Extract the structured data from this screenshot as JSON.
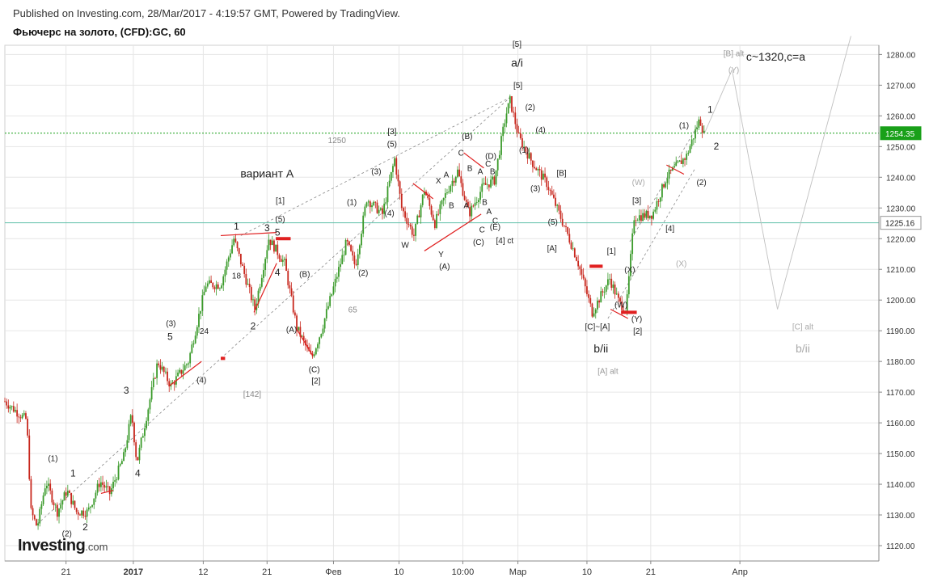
{
  "header": {
    "published": "Published on Investing.com, 28/Mar/2017 - 4:19:57 GMT, Powered by TradingView.",
    "symbol": "Фьючерс на золото, (CFD):GC, 60"
  },
  "logo": {
    "brand": "Investing",
    "suffix": ".com"
  },
  "colors": {
    "up": "#3a9a2a",
    "down": "#c8281e",
    "annotation_red": "#e02020",
    "price_line": "#19a019",
    "level_line": "#5fbfa9",
    "grid": "#e6e6e6",
    "channel": "#888888",
    "projection": "#c0c0c0"
  },
  "chart_data": {
    "type": "candlestick",
    "title": "",
    "ylim": [
      1115,
      1283
    ],
    "y_ticks": [
      "1120.00",
      "1130.00",
      "1140.00",
      "1150.00",
      "1160.00",
      "1170.00",
      "1180.00",
      "1190.00",
      "1200.00",
      "1210.00",
      "1220.00",
      "1230.00",
      "1240.00",
      "1250.00",
      "1260.00",
      "1270.00",
      "1280.00"
    ],
    "x_ticks": [
      {
        "label": "21",
        "pos": 0.07
      },
      {
        "label": "2017",
        "pos": 0.147
      },
      {
        "label": "12",
        "pos": 0.227
      },
      {
        "label": "21",
        "pos": 0.3
      },
      {
        "label": "Фев",
        "pos": 0.376
      },
      {
        "label": "10",
        "pos": 0.451
      },
      {
        "label": "10:00",
        "pos": 0.524
      },
      {
        "label": "Мар",
        "pos": 0.587
      },
      {
        "label": "10",
        "pos": 0.666
      },
      {
        "label": "21",
        "pos": 0.739
      },
      {
        "label": "Апр",
        "pos": 0.841
      }
    ],
    "price_path": [
      [
        0.0,
        1167
      ],
      [
        0.02,
        1162
      ],
      [
        0.025,
        1161
      ],
      [
        0.03,
        1131
      ],
      [
        0.037,
        1126
      ],
      [
        0.047,
        1141
      ],
      [
        0.06,
        1131
      ],
      [
        0.071,
        1138
      ],
      [
        0.082,
        1131
      ],
      [
        0.095,
        1131
      ],
      [
        0.109,
        1141
      ],
      [
        0.12,
        1137
      ],
      [
        0.136,
        1149
      ],
      [
        0.145,
        1163
      ],
      [
        0.151,
        1147
      ],
      [
        0.175,
        1180
      ],
      [
        0.19,
        1172
      ],
      [
        0.21,
        1180
      ],
      [
        0.23,
        1205
      ],
      [
        0.247,
        1205
      ],
      [
        0.262,
        1220
      ],
      [
        0.286,
        1197
      ],
      [
        0.302,
        1220
      ],
      [
        0.32,
        1212
      ],
      [
        0.334,
        1191
      ],
      [
        0.351,
        1181
      ],
      [
        0.362,
        1190
      ],
      [
        0.391,
        1219
      ],
      [
        0.401,
        1211
      ],
      [
        0.414,
        1233
      ],
      [
        0.432,
        1228
      ],
      [
        0.446,
        1246
      ],
      [
        0.454,
        1230
      ],
      [
        0.468,
        1221
      ],
      [
        0.48,
        1236
      ],
      [
        0.492,
        1225
      ],
      [
        0.505,
        1235
      ],
      [
        0.518,
        1242
      ],
      [
        0.531,
        1228
      ],
      [
        0.547,
        1237
      ],
      [
        0.56,
        1239
      ],
      [
        0.573,
        1260
      ],
      [
        0.578,
        1265
      ],
      [
        0.588,
        1253
      ],
      [
        0.603,
        1245
      ],
      [
        0.62,
        1238
      ],
      [
        0.643,
        1222
      ],
      [
        0.655,
        1213
      ],
      [
        0.672,
        1196
      ],
      [
        0.692,
        1207
      ],
      [
        0.703,
        1199
      ],
      [
        0.711,
        1197
      ],
      [
        0.72,
        1227
      ],
      [
        0.741,
        1228
      ],
      [
        0.757,
        1240
      ],
      [
        0.77,
        1244
      ],
      [
        0.78,
        1247
      ],
      [
        0.795,
        1259
      ],
      [
        0.8,
        1254
      ]
    ],
    "last_price": "1254.35",
    "reference_level": "1225.16",
    "annotations": [
      {
        "text": "1250",
        "x": 0.38,
        "y": 1251.2,
        "color": "#888"
      },
      {
        "text": "вариант А",
        "x": 0.3,
        "y": 1240,
        "color": "#222",
        "size": 14
      },
      {
        "text": "[1]",
        "x": 0.315,
        "y": 1231.5,
        "color": "#222"
      },
      {
        "text": "(5)",
        "x": 0.315,
        "y": 1225.5,
        "color": "#222"
      },
      {
        "text": "1",
        "x": 0.265,
        "y": 1223,
        "color": "#222",
        "size": 12
      },
      {
        "text": "3",
        "x": 0.3,
        "y": 1222.5,
        "color": "#222",
        "size": 12
      },
      {
        "text": "5",
        "x": 0.312,
        "y": 1221,
        "color": "#222",
        "size": 12
      },
      {
        "text": "18",
        "x": 0.265,
        "y": 1207,
        "color": "#222"
      },
      {
        "text": "4",
        "x": 0.312,
        "y": 1208,
        "color": "#222",
        "size": 12
      },
      {
        "text": "(B)",
        "x": 0.343,
        "y": 1207.5,
        "color": "#222"
      },
      {
        "text": "2",
        "x": 0.284,
        "y": 1190.5,
        "color": "#222",
        "size": 12
      },
      {
        "text": "(A)",
        "x": 0.328,
        "y": 1189.5,
        "color": "#222"
      },
      {
        "text": "(C)",
        "x": 0.354,
        "y": 1176.5,
        "color": "#222"
      },
      {
        "text": "[2]",
        "x": 0.356,
        "y": 1172.8,
        "color": "#222"
      },
      {
        "text": "65",
        "x": 0.398,
        "y": 1196,
        "color": "#888"
      },
      {
        "text": "(2)",
        "x": 0.41,
        "y": 1208,
        "color": "#222"
      },
      {
        "text": "(1)",
        "x": 0.397,
        "y": 1231,
        "color": "#222"
      },
      {
        "text": "(3)",
        "x": 0.425,
        "y": 1241,
        "color": "#222"
      },
      {
        "text": "(4)",
        "x": 0.44,
        "y": 1227.5,
        "color": "#222"
      },
      {
        "text": "[3]",
        "x": 0.443,
        "y": 1254,
        "color": "#222"
      },
      {
        "text": "(5)",
        "x": 0.443,
        "y": 1250,
        "color": "#222"
      },
      {
        "text": "W",
        "x": 0.458,
        "y": 1217,
        "color": "#222"
      },
      {
        "text": "X",
        "x": 0.496,
        "y": 1238,
        "color": "#222"
      },
      {
        "text": "A",
        "x": 0.505,
        "y": 1240,
        "color": "#222"
      },
      {
        "text": "B",
        "x": 0.511,
        "y": 1230,
        "color": "#222"
      },
      {
        "text": "Y",
        "x": 0.499,
        "y": 1214,
        "color": "#222"
      },
      {
        "text": "(A)",
        "x": 0.503,
        "y": 1210,
        "color": "#222"
      },
      {
        "text": "C",
        "x": 0.522,
        "y": 1247,
        "color": "#222"
      },
      {
        "text": "B",
        "x": 0.532,
        "y": 1242,
        "color": "#222"
      },
      {
        "text": "A",
        "x": 0.528,
        "y": 1230,
        "color": "#222"
      },
      {
        "text": "A",
        "x": 0.544,
        "y": 1241,
        "color": "#222"
      },
      {
        "text": "B",
        "x": 0.549,
        "y": 1231,
        "color": "#222"
      },
      {
        "text": "A",
        "x": 0.554,
        "y": 1228,
        "color": "#222"
      },
      {
        "text": "C",
        "x": 0.561,
        "y": 1225,
        "color": "#222"
      },
      {
        "text": "(B)",
        "x": 0.529,
        "y": 1252.5,
        "color": "#222"
      },
      {
        "text": "(D)",
        "x": 0.556,
        "y": 1246,
        "color": "#222"
      },
      {
        "text": "C",
        "x": 0.553,
        "y": 1243.5,
        "color": "#222"
      },
      {
        "text": "B",
        "x": 0.558,
        "y": 1241,
        "color": "#222"
      },
      {
        "text": "C",
        "x": 0.546,
        "y": 1222,
        "color": "#222"
      },
      {
        "text": "(E)",
        "x": 0.561,
        "y": 1223,
        "color": "#222"
      },
      {
        "text": "(C)",
        "x": 0.542,
        "y": 1218,
        "color": "#222"
      },
      {
        "text": "[4] ct",
        "x": 0.572,
        "y": 1218.5,
        "color": "#222"
      },
      {
        "text": "[5]",
        "x": 0.586,
        "y": 1282.5,
        "color": "#222"
      },
      {
        "text": "a/i",
        "x": 0.586,
        "y": 1276,
        "color": "#222",
        "size": 14
      },
      {
        "text": "[5]",
        "x": 0.587,
        "y": 1269,
        "color": "#222"
      },
      {
        "text": "(2)",
        "x": 0.601,
        "y": 1262,
        "color": "#222"
      },
      {
        "text": "(4)",
        "x": 0.613,
        "y": 1254.5,
        "color": "#222"
      },
      {
        "text": "(1)",
        "x": 0.594,
        "y": 1248,
        "color": "#222"
      },
      {
        "text": "[B]",
        "x": 0.637,
        "y": 1240.5,
        "color": "#222"
      },
      {
        "text": "(3)",
        "x": 0.607,
        "y": 1235.5,
        "color": "#222"
      },
      {
        "text": "(5)",
        "x": 0.627,
        "y": 1224.5,
        "color": "#222"
      },
      {
        "text": "[A]",
        "x": 0.626,
        "y": 1216,
        "color": "#222"
      },
      {
        "text": "[1]",
        "x": 0.694,
        "y": 1215,
        "color": "#222"
      },
      {
        "text": "(X)",
        "x": 0.715,
        "y": 1209,
        "color": "#222"
      },
      {
        "text": "(W)",
        "x": 0.705,
        "y": 1197.5,
        "color": "#222"
      },
      {
        "text": "(Y)",
        "x": 0.723,
        "y": 1193,
        "color": "#222"
      },
      {
        "text": "[2]",
        "x": 0.724,
        "y": 1189,
        "color": "#222"
      },
      {
        "text": "[C]~[A]",
        "x": 0.678,
        "y": 1190.5,
        "color": "#222"
      },
      {
        "text": "b/ii",
        "x": 0.682,
        "y": 1183,
        "color": "#222",
        "size": 14
      },
      {
        "text": "[A] alt",
        "x": 0.69,
        "y": 1176,
        "color": "#999"
      },
      {
        "text": "(W)",
        "x": 0.725,
        "y": 1237.5,
        "color": "#aaa"
      },
      {
        "text": "[3]",
        "x": 0.723,
        "y": 1231.5,
        "color": "#222"
      },
      {
        "text": "[4]",
        "x": 0.761,
        "y": 1222.5,
        "color": "#222"
      },
      {
        "text": "(X)",
        "x": 0.774,
        "y": 1211,
        "color": "#aaa"
      },
      {
        "text": "(1)",
        "x": 0.777,
        "y": 1256,
        "color": "#222"
      },
      {
        "text": "1",
        "x": 0.807,
        "y": 1261,
        "color": "#222",
        "size": 12
      },
      {
        "text": "2",
        "x": 0.814,
        "y": 1249,
        "color": "#222",
        "size": 12
      },
      {
        "text": "(2)",
        "x": 0.797,
        "y": 1237.5,
        "color": "#222"
      },
      {
        "text": "[B] alt",
        "x": 0.834,
        "y": 1279.5,
        "color": "#999"
      },
      {
        "text": "c~1320,c=a",
        "x": 0.882,
        "y": 1278,
        "color": "#222",
        "size": 14
      },
      {
        "text": "(Y)",
        "x": 0.834,
        "y": 1274,
        "color": "#aaa"
      },
      {
        "text": "[C] alt",
        "x": 0.913,
        "y": 1190.5,
        "color": "#aaa"
      },
      {
        "text": "b/ii",
        "x": 0.913,
        "y": 1183,
        "color": "#aaa",
        "size": 14
      },
      {
        "text": "[142]",
        "x": 0.283,
        "y": 1168.5,
        "color": "#888"
      },
      {
        "text": "3",
        "x": 0.139,
        "y": 1169.5,
        "color": "#222",
        "size": 12
      },
      {
        "text": "4",
        "x": 0.152,
        "y": 1142.5,
        "color": "#222",
        "size": 12
      },
      {
        "text": "5",
        "x": 0.189,
        "y": 1187,
        "color": "#222",
        "size": 12
      },
      {
        "text": "(3)",
        "x": 0.19,
        "y": 1191.5,
        "color": "#222"
      },
      {
        "text": "24",
        "x": 0.228,
        "y": 1189,
        "color": "#222"
      },
      {
        "text": "(4)",
        "x": 0.225,
        "y": 1173,
        "color": "#222"
      },
      {
        "text": "(1)",
        "x": 0.055,
        "y": 1147.5,
        "color": "#222"
      },
      {
        "text": "1",
        "x": 0.078,
        "y": 1142.5,
        "color": "#222",
        "size": 12
      },
      {
        "text": "2",
        "x": 0.092,
        "y": 1125,
        "color": "#222",
        "size": 12
      },
      {
        "text": "(2)",
        "x": 0.071,
        "y": 1123,
        "color": "#222"
      }
    ]
  }
}
